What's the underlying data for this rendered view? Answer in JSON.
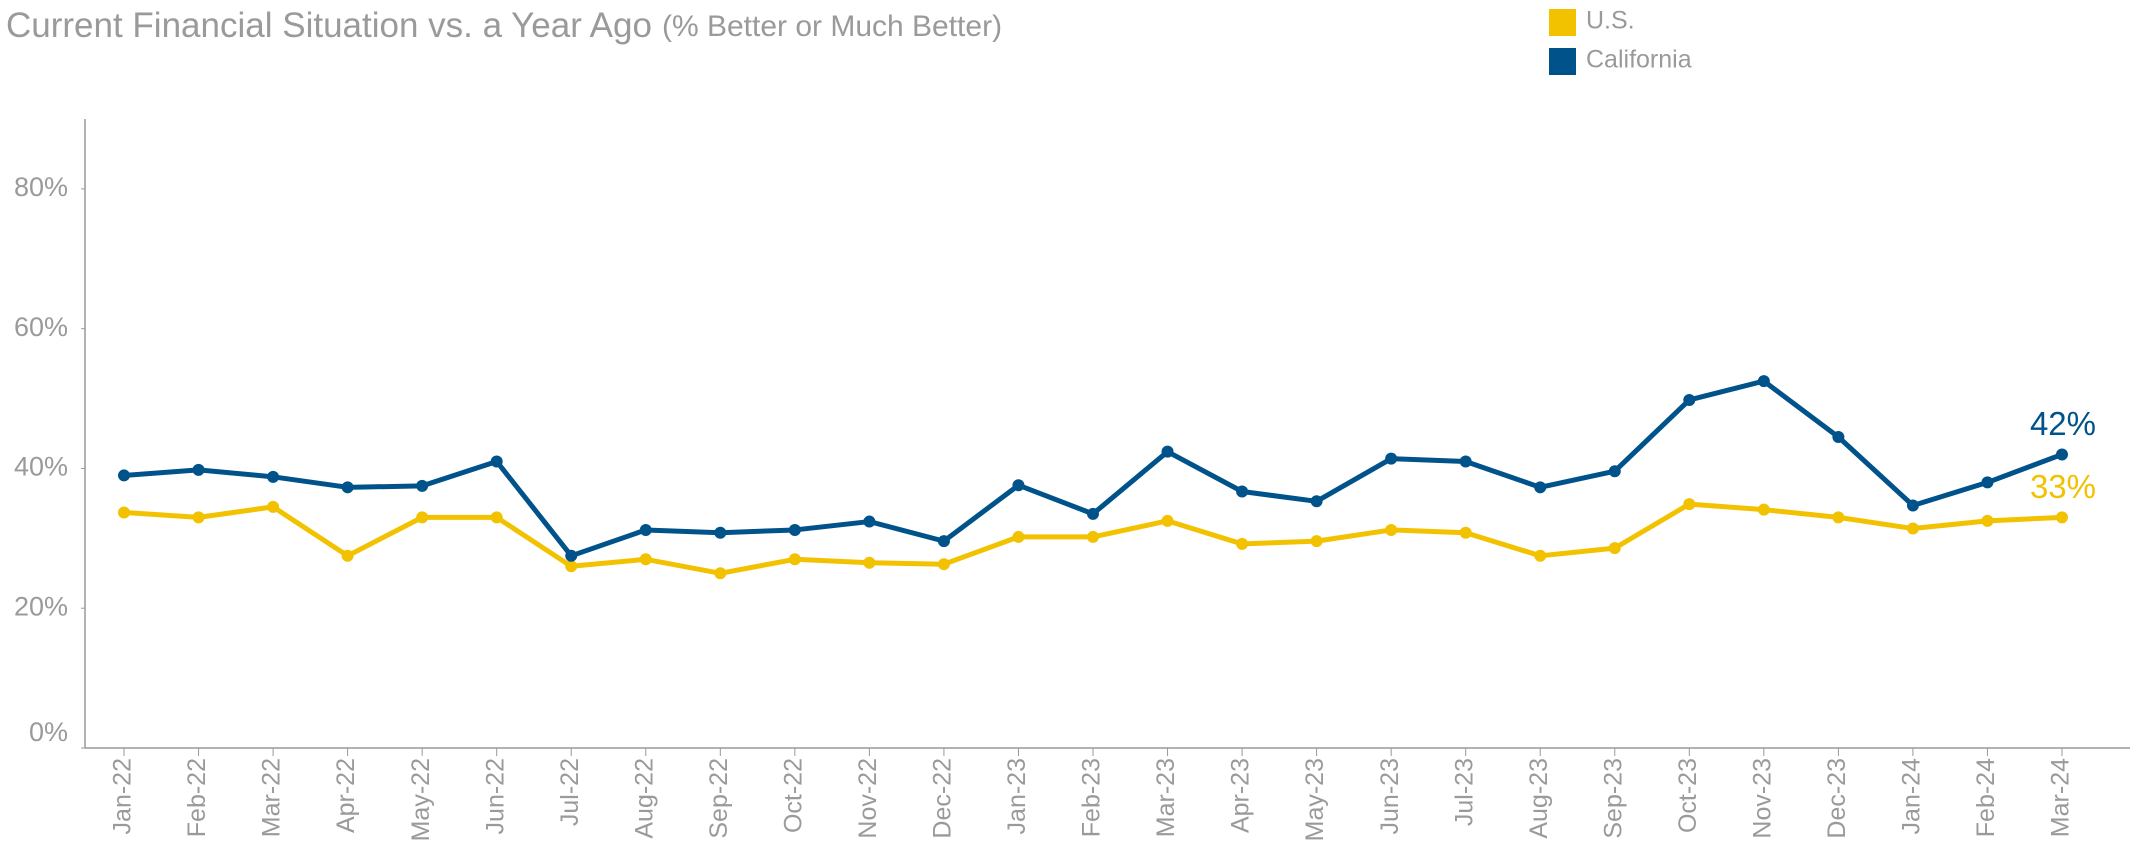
{
  "chart_data": {
    "type": "line",
    "title": "Current Financial Situation vs. a Year Ago",
    "subtitle": "(% Better or Much Better)",
    "categories": [
      "Jan-22",
      "Feb-22",
      "Mar-22",
      "Apr-22",
      "May-22",
      "Jun-22",
      "Jul-22",
      "Aug-22",
      "Sep-22",
      "Oct-22",
      "Nov-22",
      "Dec-22",
      "Jan-23",
      "Feb-23",
      "Mar-23",
      "Apr-23",
      "May-23",
      "Jun-23",
      "Jul-23",
      "Aug-23",
      "Sep-23",
      "Oct-23",
      "Nov-23",
      "Dec-23",
      "Jan-24",
      "Feb-24",
      "Mar-24"
    ],
    "series": [
      {
        "name": "U.S.",
        "color": "#f2c200",
        "values": [
          33.7,
          33,
          34.5,
          27.5,
          33,
          33,
          26,
          27,
          25,
          27,
          26.5,
          26.3,
          30.2,
          30.2,
          32.5,
          29.2,
          29.6,
          31.2,
          30.8,
          27.5,
          28.6,
          34.9,
          34.1,
          33,
          31.4,
          32.5,
          33
        ],
        "value_labels": [
          null,
          null,
          null,
          null,
          null,
          null,
          null,
          null,
          null,
          null,
          null,
          null,
          null,
          null,
          null,
          null,
          null,
          null,
          null,
          null,
          null,
          null,
          null,
          null,
          null,
          null,
          "33%"
        ]
      },
      {
        "name": "California",
        "color": "#00538a",
        "values": [
          39,
          39.8,
          38.8,
          37.3,
          37.5,
          41,
          27.5,
          31.2,
          30.8,
          31.2,
          32.4,
          29.6,
          37.6,
          33.5,
          42.4,
          36.7,
          35.3,
          41.4,
          41,
          37.3,
          39.6,
          49.8,
          52.5,
          44.5,
          34.7,
          38,
          42
        ],
        "value_labels": [
          null,
          null,
          null,
          null,
          null,
          null,
          null,
          null,
          null,
          null,
          null,
          null,
          null,
          null,
          null,
          null,
          null,
          null,
          null,
          null,
          null,
          null,
          null,
          null,
          null,
          null,
          "42%"
        ]
      }
    ],
    "ylim": [
      0,
      90
    ],
    "yticks": [
      {
        "value": 0,
        "label": "0%"
      },
      {
        "value": 20,
        "label": "20%"
      },
      {
        "value": 40,
        "label": "40%"
      },
      {
        "value": 60,
        "label": "60%"
      },
      {
        "value": 80,
        "label": "80%"
      }
    ],
    "grid": false
  }
}
